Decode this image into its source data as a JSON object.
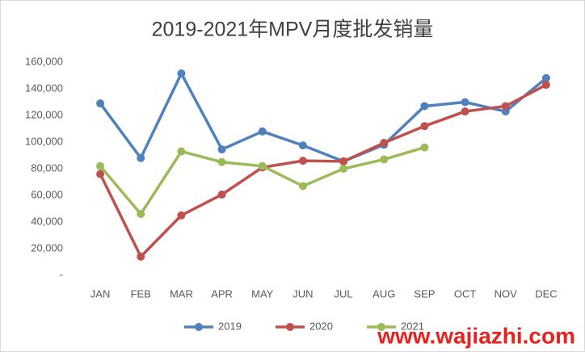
{
  "chart_data": {
    "type": "line",
    "title": "2019-2021年MPV月度批发销量",
    "categories": [
      "JAN",
      "FEB",
      "MAR",
      "APR",
      "MAY",
      "JUN",
      "JUL",
      "AUG",
      "SEP",
      "OCT",
      "NOV",
      "DEC"
    ],
    "series": [
      {
        "name": "2019",
        "color": "#4f81bd",
        "values": [
          129000,
          88000,
          151500,
          94500,
          108000,
          97500,
          85500,
          98000,
          127000,
          130000,
          123000,
          148000
        ]
      },
      {
        "name": "2020",
        "color": "#c0504d",
        "values": [
          76000,
          14000,
          45000,
          60600,
          81000,
          86000,
          85500,
          99400,
          112000,
          123000,
          127000,
          143000
        ]
      },
      {
        "name": "2021",
        "color": "#9bbb59",
        "values": [
          82000,
          46000,
          93000,
          85000,
          82000,
          67000,
          80000,
          87000,
          96000,
          null,
          null,
          null
        ]
      }
    ],
    "ylim": [
      0,
      160000
    ],
    "yticks": [
      {
        "value": 0,
        "label": "-"
      },
      {
        "value": 20000,
        "label": "20,000"
      },
      {
        "value": 40000,
        "label": "40,000"
      },
      {
        "value": 60000,
        "label": "60,000"
      },
      {
        "value": 80000,
        "label": "80,000"
      },
      {
        "value": 100000,
        "label": "100,000"
      },
      {
        "value": 120000,
        "label": "120,000"
      },
      {
        "value": 140000,
        "label": "140,000"
      },
      {
        "value": 160000,
        "label": "160,000"
      }
    ],
    "grid": false,
    "legend": "bottom",
    "watermark": "www.wajiazhi.com"
  }
}
